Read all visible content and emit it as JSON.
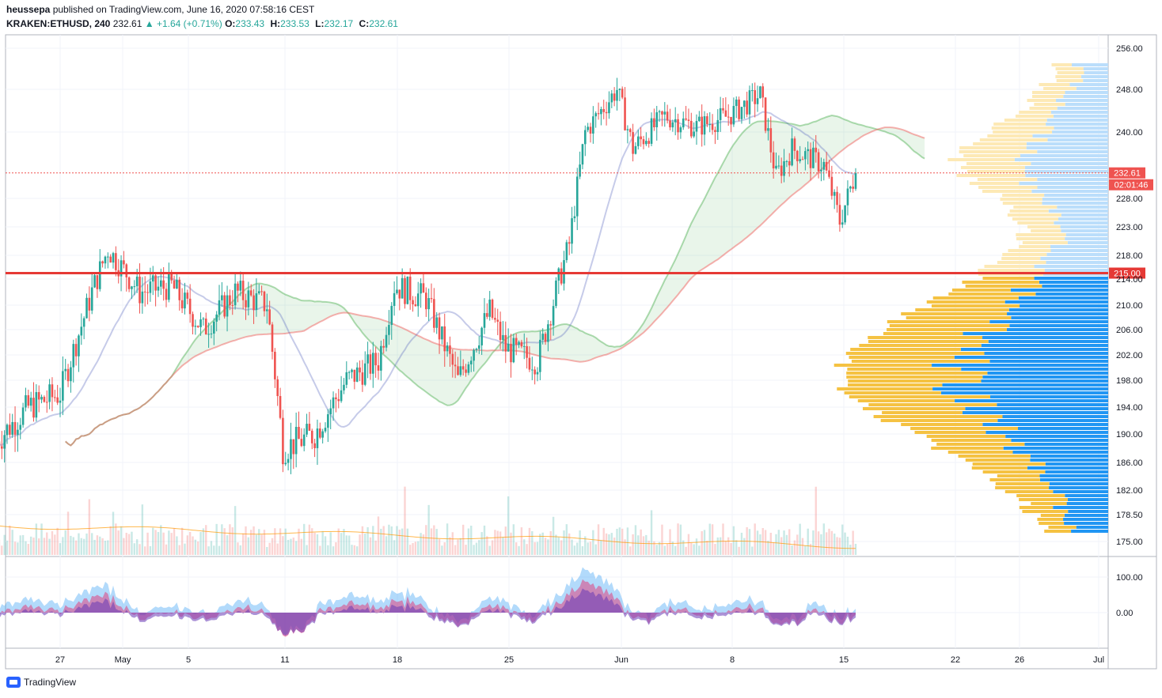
{
  "header": {
    "author": "heussepa",
    "published_text": "published on TradingView.com, June 16, 2020 07:58:16 CEST",
    "symbol": "KRAKEN:ETHUSD, 240",
    "last": "232.61",
    "change_arrow": "▲",
    "change": "+1.64 (+0.71%)",
    "open_label": "O:",
    "open": "233.43",
    "high_label": "H:",
    "high": "233.53",
    "low_label": "L:",
    "low": "232.17",
    "close_label": "C:",
    "close": "232.61"
  },
  "footer": {
    "brand": "TradingView",
    "logo_icon": "tradingview-logo-icon"
  },
  "colors": {
    "up": "#26a69a",
    "down": "#ef5350",
    "support": "#e53935",
    "vp_up": "#2196f3",
    "vp_down": "#f5c242"
  },
  "chart_data": [
    {
      "type": "candlestick",
      "x_tick_labels": [
        "27",
        "May",
        "5",
        "11",
        "18",
        "25",
        "Jun",
        "8",
        "15",
        "22",
        "26",
        "Jul"
      ],
      "y_tick_labels": [
        256.0,
        248.0,
        240.0,
        228.0,
        223.0,
        218.0,
        214.0,
        210.0,
        206.0,
        202.0,
        198.0,
        194.0,
        190.0,
        186.0,
        182.0,
        178.5,
        175.0
      ],
      "last_price_label": "232.61",
      "countdown_label": "02:01:46",
      "horizontal_level": 215.0,
      "horizontal_level_label": "215.00",
      "approx_close_path": [
        {
          "date": "Apr 23",
          "close": 189
        },
        {
          "date": "Apr 25",
          "close": 194
        },
        {
          "date": "Apr 27",
          "close": 196
        },
        {
          "date": "Apr 29",
          "close": 212
        },
        {
          "date": "Apr 30",
          "close": 219
        },
        {
          "date": "May 2",
          "close": 212
        },
        {
          "date": "May 4",
          "close": 213
        },
        {
          "date": "May 6",
          "close": 206
        },
        {
          "date": "May 8",
          "close": 212
        },
        {
          "date": "May 10",
          "close": 210
        },
        {
          "date": "May 11",
          "close": 188
        },
        {
          "date": "May 13",
          "close": 190
        },
        {
          "date": "May 15",
          "close": 198
        },
        {
          "date": "May 17",
          "close": 201
        },
        {
          "date": "May 18",
          "close": 213
        },
        {
          "date": "May 20",
          "close": 211
        },
        {
          "date": "May 22",
          "close": 198
        },
        {
          "date": "May 24",
          "close": 209
        },
        {
          "date": "May 25",
          "close": 203
        },
        {
          "date": "May 27",
          "close": 201
        },
        {
          "date": "May 29",
          "close": 220
        },
        {
          "date": "May 30",
          "close": 240
        },
        {
          "date": "Jun 1",
          "close": 248
        },
        {
          "date": "Jun 2",
          "close": 237
        },
        {
          "date": "Jun 4",
          "close": 243
        },
        {
          "date": "Jun 6",
          "close": 241
        },
        {
          "date": "Jun 8",
          "close": 243
        },
        {
          "date": "Jun 10",
          "close": 247
        },
        {
          "date": "Jun 11",
          "close": 232
        },
        {
          "date": "Jun 12",
          "close": 237
        },
        {
          "date": "Jun 14",
          "close": 234
        },
        {
          "date": "Jun 15",
          "close": 224
        },
        {
          "date": "Jun 16",
          "close": 232.61
        }
      ]
    },
    {
      "type": "area",
      "panel": "oscillator",
      "y_tick_labels": [
        100.0,
        0.0
      ]
    }
  ]
}
